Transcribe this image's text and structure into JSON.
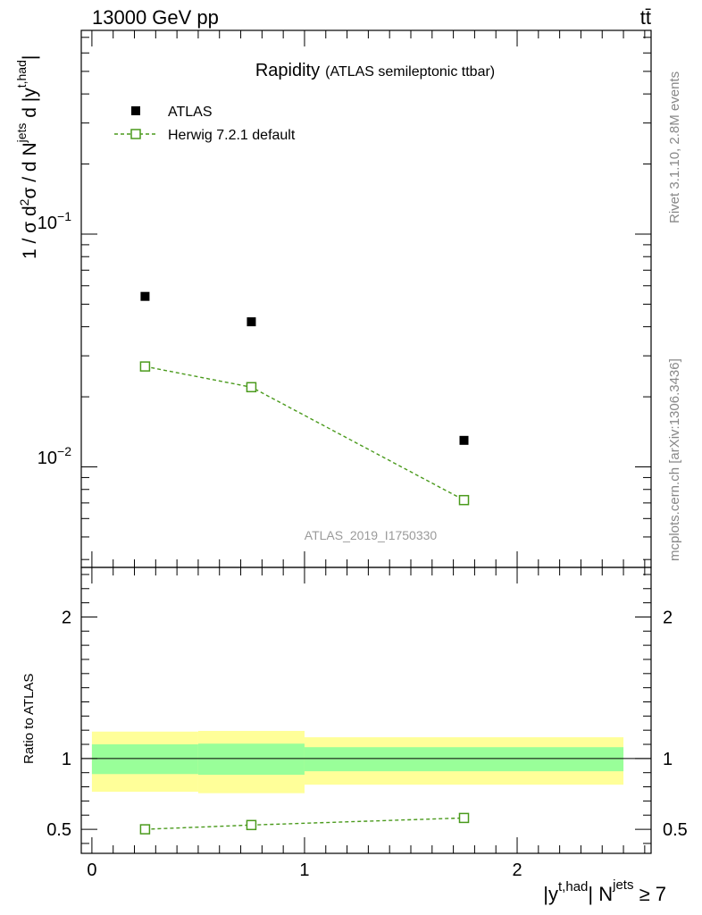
{
  "header": {
    "energy_label": "13000 GeV pp",
    "process_label": "tt̄"
  },
  "side_labels": {
    "rivet": "Rivet 3.1.10,  2.8M events",
    "mcplots": "mcplots.cern.ch [arXiv:1306.3436]"
  },
  "chart_data": [
    {
      "type": "scatter",
      "panel": "main",
      "title": "Rapidity",
      "subtitle": "(ATLAS semileptonic ttbar)",
      "watermark": "ATLAS_2019_I1750330",
      "ylabel": "1 / σ d²σ / d Nʲᵉᵗˢ d |yᵗ,ʰᵃᵈ|",
      "yscale": "log",
      "xlim": [
        -0.05,
        2.63
      ],
      "ylim": [
        0.0037,
        0.75
      ],
      "ytick_labels": [
        "10⁻¹",
        "10⁻²"
      ],
      "legend": {
        "position": "top-left",
        "entries": [
          "ATLAS",
          "Herwig 7.2.1 default"
        ]
      },
      "series": [
        {
          "name": "ATLAS",
          "style": "black-filled-square",
          "x": [
            0.25,
            0.75,
            1.75
          ],
          "y": [
            0.054,
            0.042,
            0.013
          ]
        },
        {
          "name": "Herwig 7.2.1 default",
          "style": "green-open-square-dashed",
          "color": "#4a9a1c",
          "x": [
            0.25,
            0.75,
            1.75
          ],
          "y": [
            0.027,
            0.022,
            0.0072
          ]
        }
      ]
    },
    {
      "type": "line",
      "panel": "ratio",
      "ylabel": "Ratio to ATLAS",
      "xlabel": "|yᵗ,ʰᵃᵈ| Nʲᵉᵗˢ ≥ 7",
      "xlim": [
        -0.05,
        2.63
      ],
      "ylim": [
        0.33,
        2.35
      ],
      "x_tick_labels": [
        "0",
        "1",
        "2"
      ],
      "y_tick_labels": [
        "0.5",
        "1",
        "2"
      ],
      "bands": [
        {
          "x_low": 0.0,
          "x_high": 0.5,
          "inner": [
            0.89,
            1.1
          ],
          "outer": [
            0.765,
            1.19
          ]
        },
        {
          "x_low": 0.5,
          "x_high": 1.0,
          "inner": [
            0.885,
            1.105
          ],
          "outer": [
            0.755,
            1.195
          ]
        },
        {
          "x_low": 1.0,
          "x_high": 2.5,
          "inner": [
            0.91,
            1.08
          ],
          "outer": [
            0.815,
            1.15
          ]
        }
      ],
      "band_colors": {
        "inner": "#99ff99",
        "outer": "#ffff99"
      },
      "series": [
        {
          "name": "Herwig 7.2.1 default",
          "color": "#4a9a1c",
          "x": [
            0.25,
            0.75,
            1.75
          ],
          "y": [
            0.5,
            0.53,
            0.58
          ]
        }
      ]
    }
  ]
}
